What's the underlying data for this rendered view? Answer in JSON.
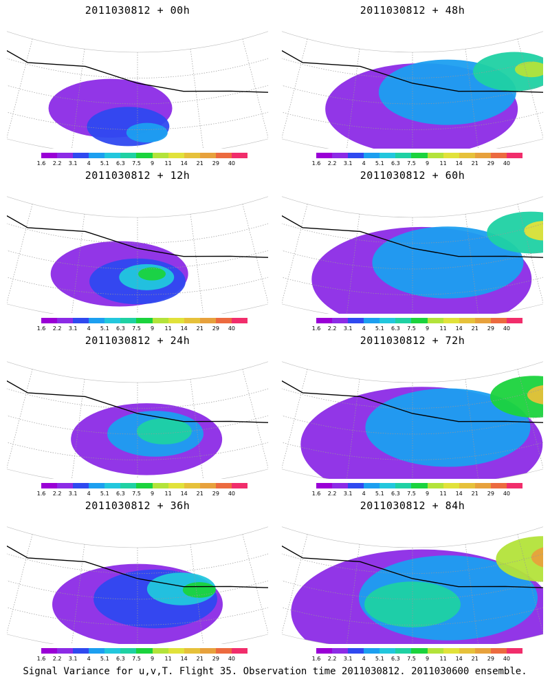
{
  "panels": [
    {
      "title": "2011030812 + 00h",
      "spread": 0.35,
      "intensity": 1,
      "blobs": [
        [
          -0.15,
          0.55,
          0.45,
          1
        ],
        [
          -0.05,
          0.72,
          0.3,
          2
        ],
        [
          0.05,
          0.78,
          0.15,
          3
        ]
      ]
    },
    {
      "title": "2011030812 + 12h",
      "spread": 0.45,
      "intensity": 2,
      "blobs": [
        [
          -0.1,
          0.55,
          0.5,
          1
        ],
        [
          0.0,
          0.62,
          0.35,
          2
        ],
        [
          0.05,
          0.58,
          0.2,
          4
        ],
        [
          0.08,
          0.55,
          0.1,
          6
        ]
      ]
    },
    {
      "title": "2011030812 + 24h",
      "spread": 0.55,
      "intensity": 2,
      "blobs": [
        [
          0.05,
          0.55,
          0.55,
          1
        ],
        [
          0.1,
          0.5,
          0.35,
          3
        ],
        [
          0.15,
          0.48,
          0.2,
          5
        ]
      ]
    },
    {
      "title": "2011030812 + 36h",
      "spread": 0.62,
      "intensity": 3,
      "blobs": [
        [
          0.0,
          0.55,
          0.62,
          1
        ],
        [
          0.1,
          0.5,
          0.45,
          2
        ],
        [
          0.25,
          0.42,
          0.25,
          4
        ],
        [
          0.35,
          0.45,
          0.12,
          6
        ]
      ]
    },
    {
      "title": "2011030812 + 48h",
      "spread": 0.7,
      "intensity": 3,
      "blobs": [
        [
          0.05,
          0.55,
          0.7,
          1
        ],
        [
          0.2,
          0.4,
          0.5,
          3
        ],
        [
          0.6,
          0.3,
          0.3,
          5
        ],
        [
          0.7,
          0.32,
          0.12,
          7
        ]
      ]
    },
    {
      "title": "2011030812 + 60h",
      "spread": 0.78,
      "intensity": 4,
      "blobs": [
        [
          0.05,
          0.6,
          0.8,
          1
        ],
        [
          0.2,
          0.45,
          0.55,
          3
        ],
        [
          0.7,
          0.3,
          0.32,
          5
        ],
        [
          0.78,
          0.32,
          0.15,
          8
        ]
      ]
    },
    {
      "title": "2011030812 + 72h",
      "spread": 0.85,
      "intensity": 4,
      "blobs": [
        [
          0.05,
          0.6,
          0.88,
          1
        ],
        [
          0.2,
          0.45,
          0.6,
          3
        ],
        [
          0.72,
          0.3,
          0.32,
          6
        ],
        [
          0.8,
          0.32,
          0.15,
          9
        ]
      ]
    },
    {
      "title": "2011030812 + 84h",
      "spread": 0.92,
      "intensity": 5,
      "blobs": [
        [
          0.05,
          0.62,
          0.95,
          1
        ],
        [
          0.2,
          0.5,
          0.65,
          3
        ],
        [
          0.0,
          0.55,
          0.35,
          5
        ],
        [
          0.78,
          0.3,
          0.35,
          7
        ],
        [
          0.85,
          0.32,
          0.18,
          10
        ]
      ]
    }
  ],
  "colorbar": {
    "colors": [
      "#9a00d6",
      "#8c2be6",
      "#2f49f0",
      "#1c9ff0",
      "#22c7dd",
      "#1fd1a3",
      "#1bd33d",
      "#b3e33a",
      "#e1e23a",
      "#e6c13a",
      "#e7a13c",
      "#ec6a3f",
      "#f12d6b"
    ],
    "ticks": [
      "1.6",
      "2.2",
      "3.1",
      "4",
      "5.1",
      "6.3",
      "7.5",
      "9",
      "11",
      "14",
      "21",
      "29",
      "40"
    ]
  },
  "caption": "Signal Variance for u,v,T. Flight 35. Observation time 2011030812. 2011030600 ensemble."
}
